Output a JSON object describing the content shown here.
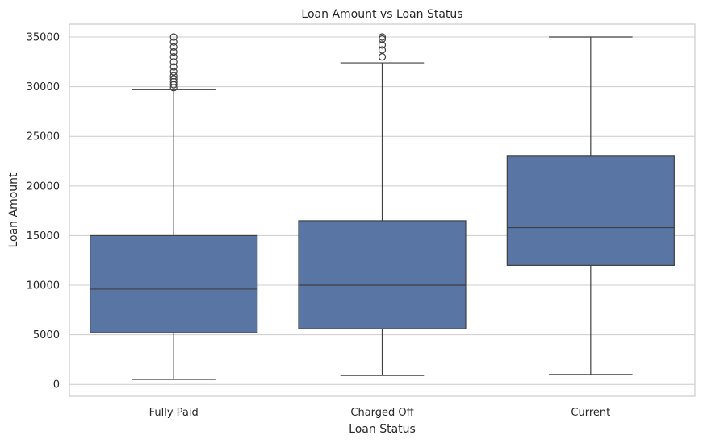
{
  "chart_data": {
    "type": "box",
    "title": "Loan Amount vs Loan Status",
    "xlabel": "Loan Status",
    "ylabel": "Loan Amount",
    "ylim": [
      -1200,
      36300
    ],
    "yticks": [
      0,
      5000,
      10000,
      15000,
      20000,
      25000,
      30000,
      35000
    ],
    "grid": true,
    "categories": [
      "Fully Paid",
      "Charged Off",
      "Current"
    ],
    "boxes": [
      {
        "category": "Fully Paid",
        "min": 500,
        "q1": 5200,
        "median": 9600,
        "q3": 15000,
        "max": 29700,
        "outliers": [
          29900,
          30200,
          30500,
          30800,
          31100,
          31500,
          32000,
          32500,
          33000,
          33500,
          34000,
          34500,
          35000
        ]
      },
      {
        "category": "Charged Off",
        "min": 900,
        "q1": 5600,
        "median": 10000,
        "q3": 16500,
        "max": 32400,
        "outliers": [
          33000,
          33700,
          34200,
          34800,
          35000
        ]
      },
      {
        "category": "Current",
        "min": 1000,
        "q1": 12000,
        "median": 15800,
        "q3": 23000,
        "max": 35000,
        "outliers": []
      }
    ],
    "colors": {
      "box": "#5875a4",
      "line": "#3f3f3f",
      "grid": "#cccccc"
    }
  }
}
